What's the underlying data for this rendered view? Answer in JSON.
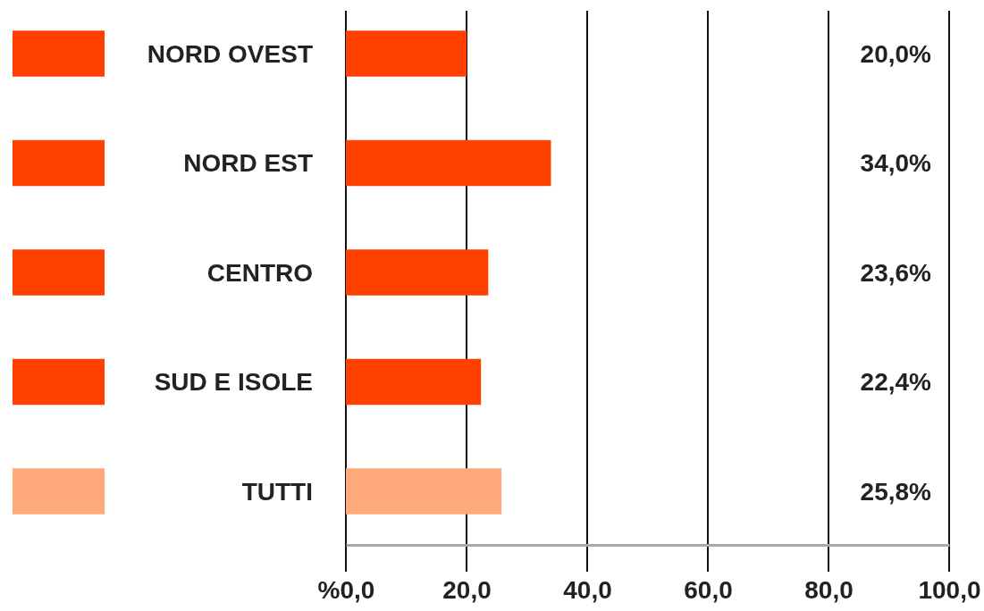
{
  "chart_data": {
    "type": "bar",
    "orientation": "horizontal",
    "categories": [
      "NORD OVEST",
      "NORD EST",
      "CENTRO",
      "SUD E ISOLE",
      "TUTTI"
    ],
    "values": [
      20.0,
      34.0,
      23.6,
      22.4,
      25.8
    ],
    "colors": [
      "#ff4000",
      "#ff4000",
      "#ff4000",
      "#ff4000",
      "#ffa87a"
    ],
    "value_labels": [
      "20,0%",
      "34,0%",
      "23,6%",
      "22,4%",
      "25,8%"
    ],
    "xlim": [
      0,
      100
    ],
    "xticks": [
      {
        "value": 0,
        "label": "%0,0"
      },
      {
        "value": 20,
        "label": "20,0"
      },
      {
        "value": 40,
        "label": "40,0"
      },
      {
        "value": 60,
        "label": "60,0"
      },
      {
        "value": 80,
        "label": "80,0"
      },
      {
        "value": 100,
        "label": "100,0"
      }
    ],
    "grid": "x"
  }
}
